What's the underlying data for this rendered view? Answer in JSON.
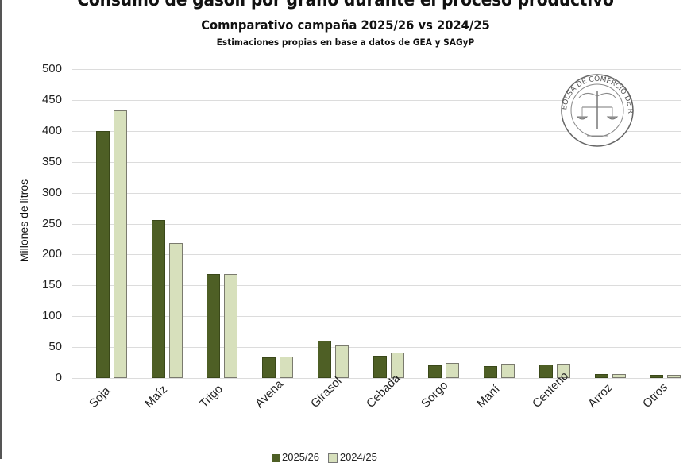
{
  "chart_data": {
    "type": "bar",
    "title": "Consumo de gasoil por grano durante el proceso productivo",
    "subtitle": "Comnparativo campaña 2025/26 vs 2024/25",
    "note": "Estimaciones propias en base a datos de GEA y SAGyP",
    "xlabel": "",
    "ylabel": "Millones de litros",
    "ylim": [
      0,
      500
    ],
    "yticks": [
      0,
      50,
      100,
      150,
      200,
      250,
      300,
      350,
      400,
      450,
      500
    ],
    "grid": true,
    "legend_position": "bottom",
    "categories": [
      "Soja",
      "Maíz",
      "Trigo",
      "Avena",
      "Girasol",
      "Cebada",
      "Sorgo",
      "Maní",
      "Centeno",
      "Arroz",
      "Otros"
    ],
    "series": [
      {
        "name": "2025/26",
        "color": "#4e5f25",
        "values": [
          400,
          256,
          168,
          34,
          60,
          36,
          21,
          19,
          22,
          6,
          5
        ]
      },
      {
        "name": "2024/25",
        "color": "#d7e0bc",
        "values": [
          433,
          219,
          168,
          35,
          53,
          41,
          25,
          23,
          23,
          6,
          5
        ]
      }
    ]
  },
  "logo": {
    "text": "BOLSA DE COMERCIO DE ROSARIO"
  }
}
